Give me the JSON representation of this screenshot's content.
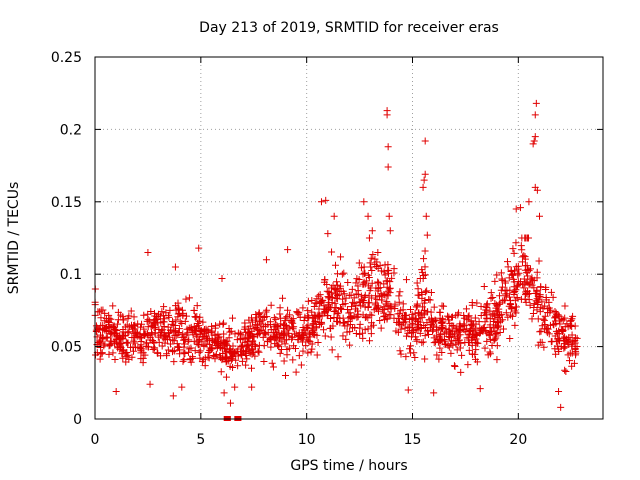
{
  "chart_data": {
    "type": "scatter",
    "title": "Day 213 of 2019, SRMTID for receiver eras",
    "xlabel": "GPS time / hours",
    "ylabel": "SRMTID / TECUs",
    "xlim": [
      0,
      24
    ],
    "ylim": [
      0,
      0.25
    ],
    "xticks": [
      0,
      5,
      10,
      15,
      20
    ],
    "xtick_labels": [
      "0",
      "5",
      "10",
      "15",
      "20"
    ],
    "yticks": [
      0,
      0.05,
      0.1,
      0.15,
      0.2,
      0.25
    ],
    "ytick_labels": [
      "0",
      "0.05",
      "0.1",
      "0.15",
      "0.2",
      "0.25"
    ],
    "grid": true,
    "marker": "plus",
    "color": "#e00000",
    "series": [
      {
        "name": "SRMTID",
        "baseline_profile": [
          [
            0.0,
            0.062
          ],
          [
            1.0,
            0.055
          ],
          [
            2.0,
            0.058
          ],
          [
            3.0,
            0.06
          ],
          [
            4.0,
            0.06
          ],
          [
            5.0,
            0.058
          ],
          [
            6.0,
            0.05
          ],
          [
            7.0,
            0.05
          ],
          [
            8.0,
            0.06
          ],
          [
            9.0,
            0.058
          ],
          [
            10.0,
            0.058
          ],
          [
            10.8,
            0.075
          ],
          [
            11.5,
            0.08
          ],
          [
            12.5,
            0.08
          ],
          [
            13.0,
            0.09
          ],
          [
            14.0,
            0.082
          ],
          [
            15.0,
            0.065
          ],
          [
            15.5,
            0.085
          ],
          [
            16.0,
            0.062
          ],
          [
            17.0,
            0.058
          ],
          [
            18.0,
            0.06
          ],
          [
            19.0,
            0.07
          ],
          [
            19.7,
            0.09
          ],
          [
            20.3,
            0.105
          ],
          [
            21.0,
            0.08
          ],
          [
            22.0,
            0.06
          ],
          [
            22.8,
            0.05
          ]
        ],
        "spikes": [
          [
            10.7,
            0.15
          ],
          [
            10.9,
            0.151
          ],
          [
            11.0,
            0.128
          ],
          [
            11.3,
            0.14
          ],
          [
            11.6,
            0.112
          ],
          [
            12.7,
            0.15
          ],
          [
            12.9,
            0.14
          ],
          [
            13.1,
            0.13
          ],
          [
            13.8,
            0.213
          ],
          [
            13.8,
            0.21
          ],
          [
            13.85,
            0.188
          ],
          [
            13.85,
            0.174
          ],
          [
            13.9,
            0.14
          ],
          [
            13.95,
            0.13
          ],
          [
            15.5,
            0.16
          ],
          [
            15.55,
            0.165
          ],
          [
            15.6,
            0.169
          ],
          [
            15.6,
            0.192
          ],
          [
            15.65,
            0.14
          ],
          [
            15.7,
            0.127
          ],
          [
            19.9,
            0.145
          ],
          [
            20.1,
            0.146
          ],
          [
            20.5,
            0.15
          ],
          [
            20.7,
            0.19
          ],
          [
            20.75,
            0.192
          ],
          [
            20.8,
            0.195
          ],
          [
            20.8,
            0.21
          ],
          [
            20.85,
            0.218
          ],
          [
            20.8,
            0.16
          ],
          [
            20.9,
            0.158
          ],
          [
            21.0,
            0.14
          ],
          [
            8.1,
            0.11
          ],
          [
            9.1,
            0.117
          ],
          [
            4.9,
            0.118
          ],
          [
            2.5,
            0.115
          ],
          [
            6.0,
            0.097
          ],
          [
            3.8,
            0.105
          ]
        ],
        "lows": [
          [
            3.7,
            0.016
          ],
          [
            6.1,
            0.018
          ],
          [
            6.4,
            0.011
          ],
          [
            6.6,
            0.022
          ],
          [
            7.4,
            0.022
          ],
          [
            22.0,
            0.008
          ],
          [
            21.9,
            0.019
          ],
          [
            14.8,
            0.02
          ],
          [
            18.2,
            0.021
          ],
          [
            16.0,
            0.018
          ],
          [
            1.0,
            0.019
          ],
          [
            2.6,
            0.024
          ],
          [
            9.0,
            0.03
          ],
          [
            4.1,
            0.022
          ]
        ],
        "zero_values": [
          6.2,
          6.3,
          6.7,
          6.8
        ]
      }
    ]
  }
}
